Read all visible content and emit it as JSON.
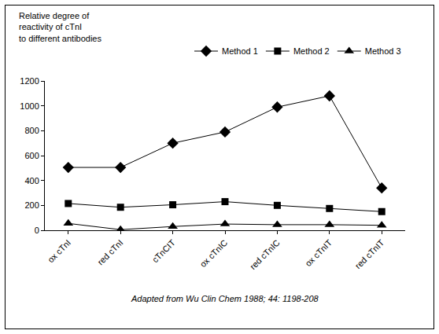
{
  "chart_data": {
    "type": "line",
    "ylabel": "Relative degree of\nreactivity of cTnI\nto different antibodies",
    "annotations": [
      "Adapted from Wu Clin Chem 1988; 44: 1198-208"
    ],
    "categories": [
      "ox cTnI",
      "red cTnI",
      "cTnCIT",
      "ox cTnIC",
      "red cTnIC",
      "ox cTnIT",
      "red cTnIT"
    ],
    "series": [
      {
        "name": "Method 1",
        "color": "#000000",
        "marker": "diamond",
        "values": [
          505,
          505,
          700,
          790,
          990,
          1080,
          340
        ]
      },
      {
        "name": "Method 2",
        "color": "#000000",
        "marker": "square",
        "values": [
          215,
          185,
          205,
          230,
          200,
          175,
          150
        ]
      },
      {
        "name": "Method 3",
        "color": "#000000",
        "marker": "triangle-up",
        "values": [
          55,
          5,
          30,
          50,
          45,
          45,
          40
        ]
      }
    ],
    "ylim": [
      0,
      1200
    ],
    "yticks": [
      0,
      200,
      400,
      600,
      800,
      1000,
      1200
    ],
    "grid": false,
    "legend": "top-right"
  }
}
